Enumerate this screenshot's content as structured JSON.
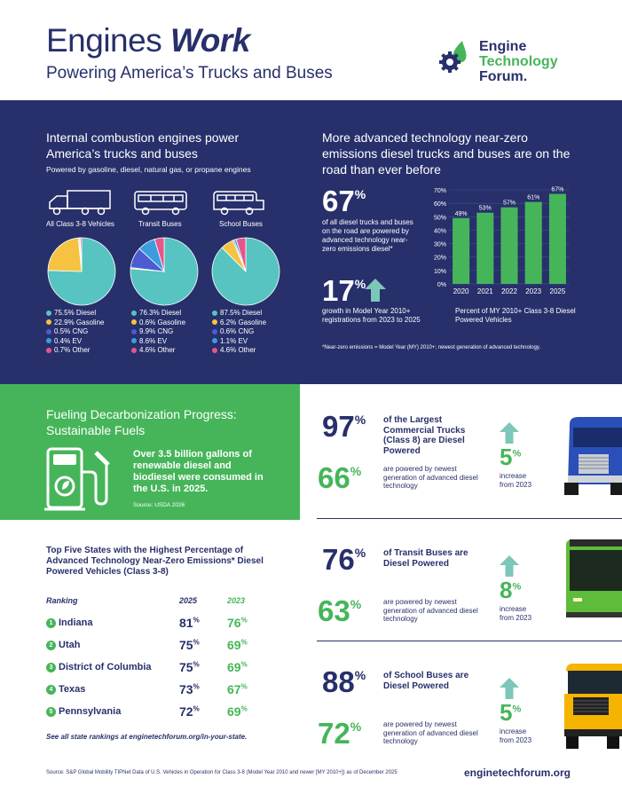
{
  "header": {
    "title_a": "Engines ",
    "title_b": "Work",
    "subtitle": "Powering America’s Trucks and Buses",
    "logo_line1": "Engine",
    "logo_line2": "Technology",
    "logo_line3": "Forum."
  },
  "left_panel": {
    "heading": "Internal combustion engines power America’s trucks and buses",
    "subheading": "Powered by gasoline, diesel, natural gas, or propane engines",
    "pies": [
      {
        "label": "All Class 3-8 Vehicles",
        "legend": [
          "75.5% Diesel",
          "22.9% Gasoline",
          "0.5% CNG",
          "0.4% EV",
          "0.7% Other"
        ],
        "values": [
          75.5,
          22.9,
          0.5,
          0.4,
          0.7
        ]
      },
      {
        "label": "Transit Buses",
        "legend": [
          "76.3% Diesel",
          "0.6% Gasoline",
          "9.9% CNG",
          "8.6% EV",
          "4.6% Other"
        ],
        "values": [
          76.3,
          0.6,
          9.9,
          8.6,
          4.6
        ]
      },
      {
        "label": "School Buses",
        "legend": [
          "87.5% Diesel",
          "6.2% Gasoline",
          "0.6% CNG",
          "1.1% EV",
          "4.6% Other"
        ],
        "values": [
          87.5,
          6.2,
          0.6,
          1.1,
          4.6
        ]
      }
    ],
    "pie_colors": [
      "#57c4c2",
      "#f5c242",
      "#4c5cd0",
      "#3b9de0",
      "#e4578a"
    ]
  },
  "right_panel": {
    "heading": "More advanced technology near-zero emissions diesel trucks and buses are on the road than ever before",
    "stat1_num": "67",
    "stat1_pct": "%",
    "stat1_text": "of all diesel trucks and buses on the road are powered by advanced technology near-zero emissions diesel*",
    "stat2_num": "17",
    "stat2_pct": "%",
    "stat2_text": "growth in Model Year 2010+ registrations from 2023 to 2025",
    "chart_caption": "Percent of MY 2010+ Class 3-8 Diesel Powered Vehicles",
    "footnote": "*Near-zero emissions = Model Year (MY) 2010+; newest generation of advanced technology."
  },
  "chart_data": {
    "type": "bar",
    "categories": [
      "2020",
      "2021",
      "2022",
      "2023",
      "2025"
    ],
    "values": [
      49,
      53,
      57,
      61,
      67
    ],
    "data_labels": [
      "49%",
      "53%",
      "57%",
      "61%",
      "67%"
    ],
    "yticks": [
      "70%",
      "60%",
      "50%",
      "40%",
      "30%",
      "20%",
      "10%",
      "0%"
    ],
    "ylim": [
      0,
      70
    ],
    "color": "#46b55a"
  },
  "fuel": {
    "heading": "Fueling Decarbonization Progress: Sustainable Fuels",
    "text": "Over 3.5 billion gallons of renewable diesel and biodiesel were consumed in the U.S. in 2025.",
    "source": "Source: USDA 2026"
  },
  "states": {
    "heading": "Top Five States with the Highest Percentage of Advanced Technology Near-Zero Emissions* Diesel Powered Vehicles (Class 3-8)",
    "col_ranking": "Ranking",
    "col_2025": "2025",
    "col_2023": "2023",
    "rows": [
      {
        "rank": "1",
        "name": "Indiana",
        "v25": "81",
        "v23": "76"
      },
      {
        "rank": "2",
        "name": "Utah",
        "v25": "75",
        "v23": "69"
      },
      {
        "rank": "3",
        "name": "District of Columbia",
        "v25": "75",
        "v23": "69"
      },
      {
        "rank": "4",
        "name": "Texas",
        "v25": "73",
        "v23": "67"
      },
      {
        "rank": "5",
        "name": "Pennsylvania",
        "v25": "72",
        "v23": "69"
      }
    ],
    "pct": "%",
    "footer": "See all state rankings at enginetechforum.org/in-your-state."
  },
  "vehicles": [
    {
      "num1": "97",
      "text1": "of the Largest Commercial Trucks (Class 8) are Diesel Powered",
      "num2": "66",
      "text2": "are powered by newest generation of advanced diesel technology",
      "inc": "5",
      "inc_text": "increase from 2023"
    },
    {
      "num1": "76",
      "text1": "of Transit Buses are Diesel Powered",
      "num2": "63",
      "text2": "are powered by newest generation of advanced diesel technology",
      "inc": "8",
      "inc_text": "increase from 2023"
    },
    {
      "num1": "88",
      "text1": "of School Buses are Diesel Powered",
      "num2": "72",
      "text2": "are powered by newest generation of advanced diesel technology",
      "inc": "5",
      "inc_text": "increase from 2023"
    }
  ],
  "footer": {
    "source": "Source: S&P Global Mobility TIPNet Data of U.S. Vehicles in Operation for Class 3-8 (Model Year 2010 and newer [MY 2010+]) as of December 2025",
    "url": "enginetechforum.org"
  }
}
